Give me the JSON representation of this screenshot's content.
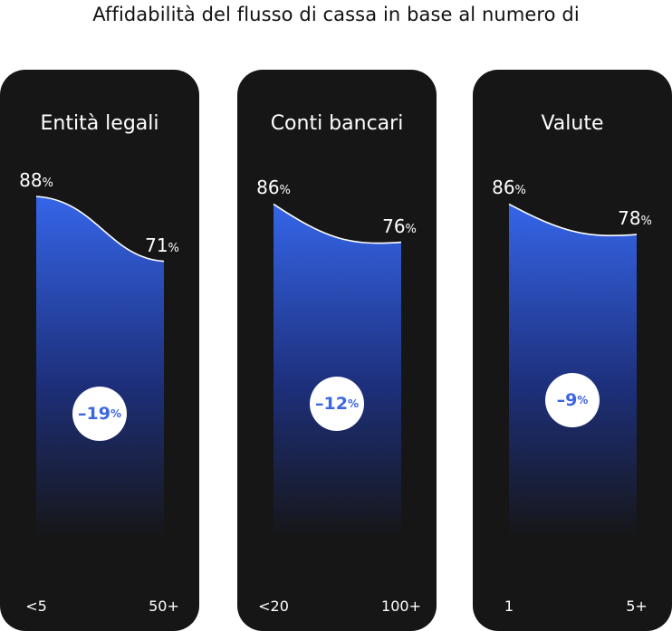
{
  "title": "Affidabilità del flusso di cassa in base al numero di",
  "colors": {
    "card_bg": "#161616",
    "gradient_top": "#3565e8",
    "gradient_bottom": "#161616",
    "curve": "#ffffff",
    "badge_text": "#3c67e0"
  },
  "chart_data": [
    {
      "type": "area",
      "title": "Entità legali",
      "x": [
        "<5",
        "50+"
      ],
      "values": [
        88,
        71
      ],
      "value_labels": [
        "88",
        "71"
      ],
      "unit": "%",
      "change_label": "–19",
      "change_unit": "%"
    },
    {
      "type": "area",
      "title": "Conti bancari",
      "x": [
        "<20",
        "100+"
      ],
      "values": [
        86,
        76
      ],
      "value_labels": [
        "86",
        "76"
      ],
      "unit": "%",
      "change_label": "–12",
      "change_unit": "%"
    },
    {
      "type": "area",
      "title": "Valute",
      "x": [
        "1",
        "5+"
      ],
      "values": [
        86,
        78
      ],
      "value_labels": [
        "86",
        "78"
      ],
      "unit": "%",
      "change_label": "–9",
      "change_unit": "%"
    }
  ]
}
